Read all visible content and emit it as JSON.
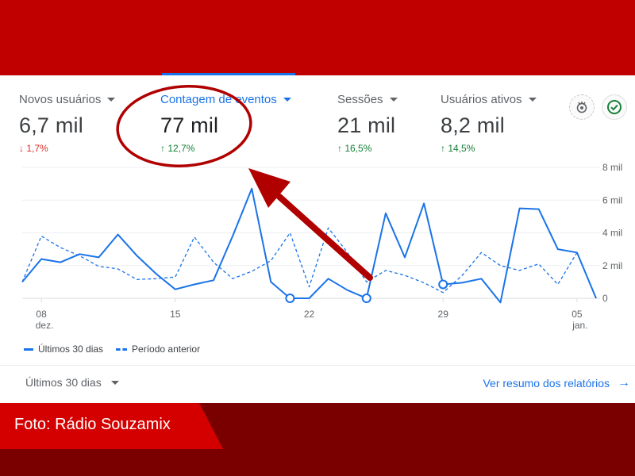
{
  "metrics": [
    {
      "label": "Novos usuários",
      "value": "6,7 mil",
      "delta": "1,7%",
      "direction": "down"
    },
    {
      "label": "Contagem de eventos",
      "value": "77 mil",
      "delta": "12,7%",
      "direction": "up"
    },
    {
      "label": "Sessões",
      "value": "21 mil",
      "delta": "16,5%",
      "direction": "up"
    },
    {
      "label": "Usuários ativos",
      "value": "8,2 mil",
      "delta": "14,5%",
      "direction": "up"
    }
  ],
  "icons": {
    "insights": "insights-icon",
    "check": "check-circle-icon"
  },
  "legend": {
    "current": "Últimos 30 dias",
    "previous": "Período anterior"
  },
  "date_range": {
    "selected": "Últimos 30 dias"
  },
  "reports_link": "Ver resumo dos relatórios",
  "caption": "Foto: Rádio Souzamix",
  "colors": {
    "accent": "#1a73e8",
    "up": "#188038",
    "down": "#d93025",
    "brand_red": "#c00000",
    "annotation": "#b00000"
  },
  "chart_data": {
    "type": "line",
    "title": "",
    "x_tick_labels": [
      {
        "day": 1,
        "label": "08",
        "sub": "dez."
      },
      {
        "day": 8,
        "label": "15",
        "sub": ""
      },
      {
        "day": 15,
        "label": "22",
        "sub": ""
      },
      {
        "day": 22,
        "label": "29",
        "sub": ""
      },
      {
        "day": 29,
        "label": "05",
        "sub": "jan."
      }
    ],
    "y_ticks": [
      {
        "value": 0,
        "label": "0"
      },
      {
        "value": 2000,
        "label": "2 mil"
      },
      {
        "value": 4000,
        "label": "4 mil"
      },
      {
        "value": 6000,
        "label": "6 mil"
      },
      {
        "value": 8000,
        "label": "8 mil"
      }
    ],
    "ylim": [
      0,
      8000
    ],
    "xlim": [
      0,
      30
    ],
    "grid": true,
    "legend_position": "bottom-left",
    "series": [
      {
        "name": "Últimos 30 dias",
        "style": "solid",
        "x": [
          0,
          1,
          2,
          3,
          4,
          5,
          6,
          7,
          8,
          9,
          10,
          11,
          12,
          13,
          14,
          15,
          16,
          17,
          18,
          19,
          20,
          21,
          22,
          23,
          24,
          25,
          26,
          27,
          28,
          29,
          30
        ],
        "values": [
          1000,
          2400,
          2200,
          2700,
          2500,
          3900,
          2600,
          1500,
          550,
          850,
          1100,
          3800,
          6700,
          1000,
          0,
          0,
          1200,
          500,
          0,
          5200,
          2500,
          5800,
          850,
          950,
          1200,
          -250,
          5500,
          5450,
          3000,
          2800,
          0
        ],
        "markers": [
          14,
          18,
          22
        ]
      },
      {
        "name": "Período anterior",
        "style": "dashed",
        "x": [
          0,
          1,
          2,
          3,
          4,
          5,
          6,
          7,
          8,
          9,
          10,
          11,
          12,
          13,
          14,
          15,
          16,
          17,
          18,
          19,
          20,
          21,
          22,
          23,
          24,
          25,
          26,
          27,
          28,
          29,
          30
        ],
        "values": [
          1000,
          3800,
          3100,
          2600,
          1950,
          1800,
          1150,
          1200,
          1300,
          3750,
          2200,
          1200,
          1650,
          2300,
          4000,
          700,
          4300,
          2800,
          1000,
          1700,
          1400,
          950,
          350,
          1400,
          2800,
          2000,
          1700,
          2100,
          850,
          2800,
          0
        ]
      }
    ]
  }
}
